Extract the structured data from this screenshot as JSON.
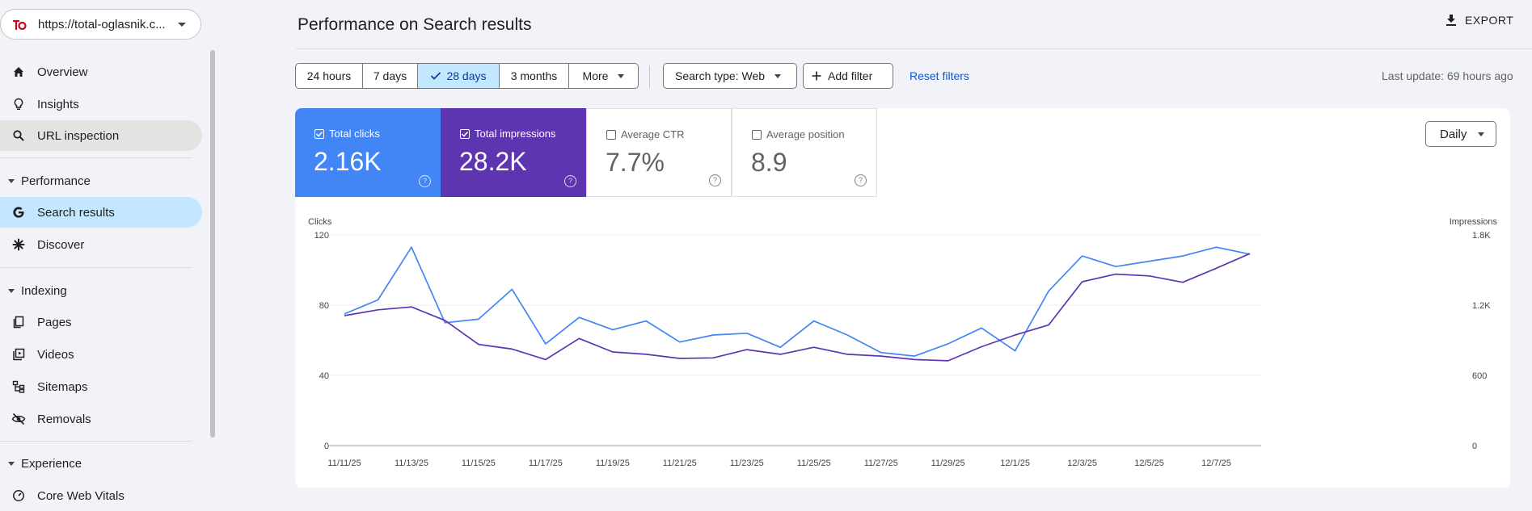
{
  "sidebar": {
    "property_url": "https://total-oglasnik.c...",
    "items": [
      {
        "label": "Overview",
        "icon": "home-icon"
      },
      {
        "label": "Insights",
        "icon": "lightbulb-icon"
      },
      {
        "label": "URL inspection",
        "icon": "search-icon"
      }
    ],
    "sections": [
      {
        "title": "Performance",
        "items": [
          {
            "label": "Search results",
            "icon": "google-g-icon"
          },
          {
            "label": "Discover",
            "icon": "asterisk-icon"
          }
        ]
      },
      {
        "title": "Indexing",
        "items": [
          {
            "label": "Pages",
            "icon": "pages-icon"
          },
          {
            "label": "Videos",
            "icon": "video-icon"
          },
          {
            "label": "Sitemaps",
            "icon": "sitemap-icon"
          },
          {
            "label": "Removals",
            "icon": "eye-off-icon"
          }
        ]
      },
      {
        "title": "Experience",
        "items": [
          {
            "label": "Core Web Vitals",
            "icon": "gauge-icon"
          }
        ]
      }
    ]
  },
  "header": {
    "title": "Performance on Search results",
    "export_label": "EXPORT"
  },
  "filters": {
    "ranges": [
      "24 hours",
      "7 days",
      "28 days",
      "3 months",
      "More"
    ],
    "selected_range": "28 days",
    "search_type": "Search type: Web",
    "add_filter": "Add filter",
    "reset": "Reset filters",
    "last_update": "Last update: 69 hours ago"
  },
  "metrics": [
    {
      "label": "Total clicks",
      "value": "2.16K",
      "checked": true,
      "color": "#4285f4"
    },
    {
      "label": "Total impressions",
      "value": "28.2K",
      "checked": true,
      "color": "#5e35b1"
    },
    {
      "label": "Average CTR",
      "value": "7.7%",
      "checked": false
    },
    {
      "label": "Average position",
      "value": "8.9",
      "checked": false
    }
  ],
  "granularity": "Daily",
  "chart_data": {
    "type": "line",
    "x": [
      "11/11/25",
      "11/12/25",
      "11/13/25",
      "11/14/25",
      "11/15/25",
      "11/16/25",
      "11/17/25",
      "11/18/25",
      "11/19/25",
      "11/20/25",
      "11/21/25",
      "11/22/25",
      "11/23/25",
      "11/24/25",
      "11/25/25",
      "11/26/25",
      "11/27/25",
      "11/28/25",
      "11/29/25",
      "11/30/25",
      "12/1/25",
      "12/2/25",
      "12/3/25",
      "12/4/25",
      "12/5/25",
      "12/6/25",
      "12/7/25",
      "12/8/25"
    ],
    "x_tick_labels": [
      "11/11/25",
      "11/13/25",
      "11/15/25",
      "11/17/25",
      "11/19/25",
      "11/21/25",
      "11/23/25",
      "11/25/25",
      "11/27/25",
      "11/29/25",
      "12/1/25",
      "12/3/25",
      "12/5/25",
      "12/7/25"
    ],
    "y_left": {
      "label": "Clicks",
      "ticks": [
        0,
        40,
        80,
        120
      ],
      "range": [
        0,
        120
      ]
    },
    "y_right": {
      "label": "Impressions",
      "ticks": [
        "0",
        "600",
        "1.2K",
        "1.8K"
      ],
      "range": [
        0,
        1800
      ]
    },
    "series": [
      {
        "name": "Clicks",
        "axis": "left",
        "color": "#4285f4",
        "values": [
          75,
          83,
          113,
          70,
          72,
          89,
          58,
          73,
          66,
          71,
          59,
          63,
          64,
          56,
          71,
          63,
          53,
          51,
          58,
          67,
          54,
          88,
          108,
          102,
          105,
          108,
          113,
          109
        ]
      },
      {
        "name": "Impressions",
        "axis": "right",
        "color": "#5e35b1",
        "values": [
          1110,
          1160,
          1185,
          1070,
          865,
          825,
          735,
          915,
          800,
          780,
          745,
          750,
          820,
          780,
          840,
          780,
          765,
          735,
          725,
          845,
          945,
          1030,
          1400,
          1465,
          1450,
          1395,
          1515,
          1640
        ]
      }
    ]
  }
}
